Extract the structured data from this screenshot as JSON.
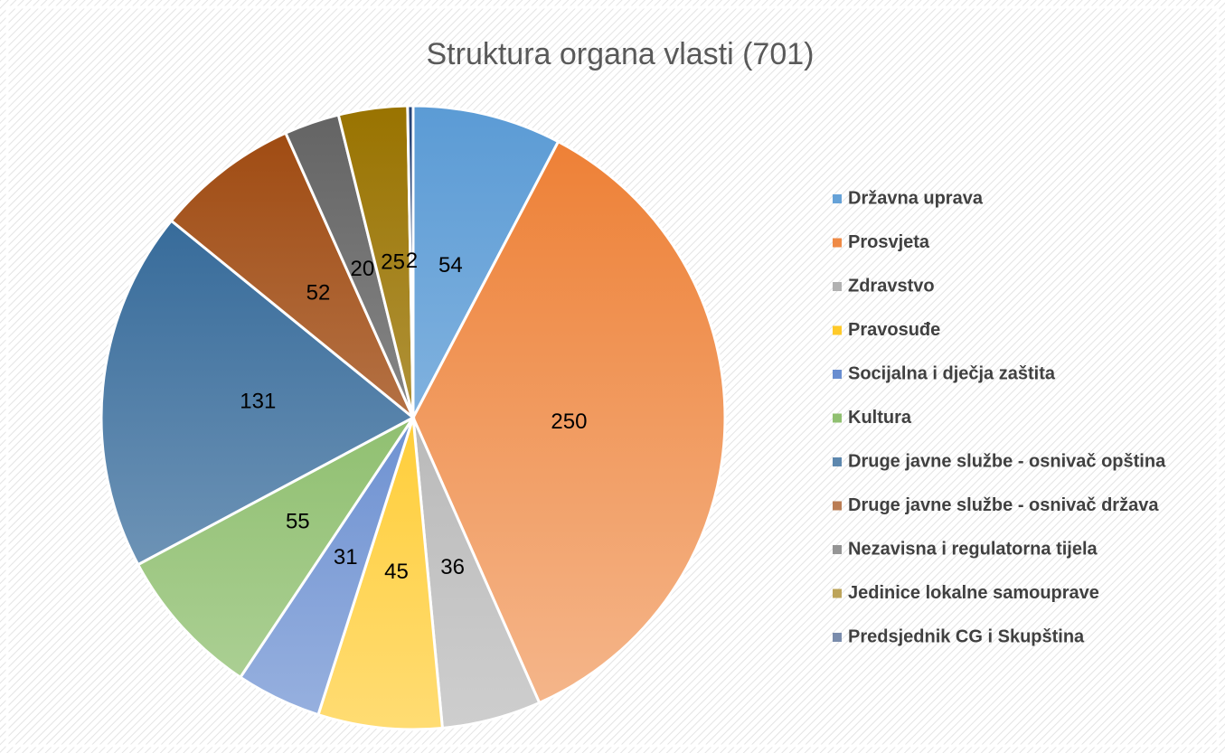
{
  "chart_data": {
    "type": "pie",
    "title": "Struktura organa vlasti (701)",
    "categories": [
      "Državna uprava",
      "Prosvjeta",
      "Zdravstvo",
      "Pravosuđe",
      "Socijalna i dječja zaštita",
      "Kultura",
      "Druge javne službe - osnivač opština",
      "Druge javne službe - osnivač država",
      "Nezavisna i regulatorna tijela",
      "Jedinice lokalne samouprave",
      "Predsjednik CG i Skupština"
    ],
    "values": [
      54,
      250,
      36,
      45,
      31,
      55,
      131,
      52,
      20,
      25,
      2
    ],
    "colors": [
      "#5b9bd5",
      "#ed7d31",
      "#a5a5a5",
      "#ffc000",
      "#4472c4",
      "#70ad47",
      "#255e91",
      "#9e480e",
      "#636363",
      "#997300",
      "#264478"
    ],
    "legend": "right"
  }
}
